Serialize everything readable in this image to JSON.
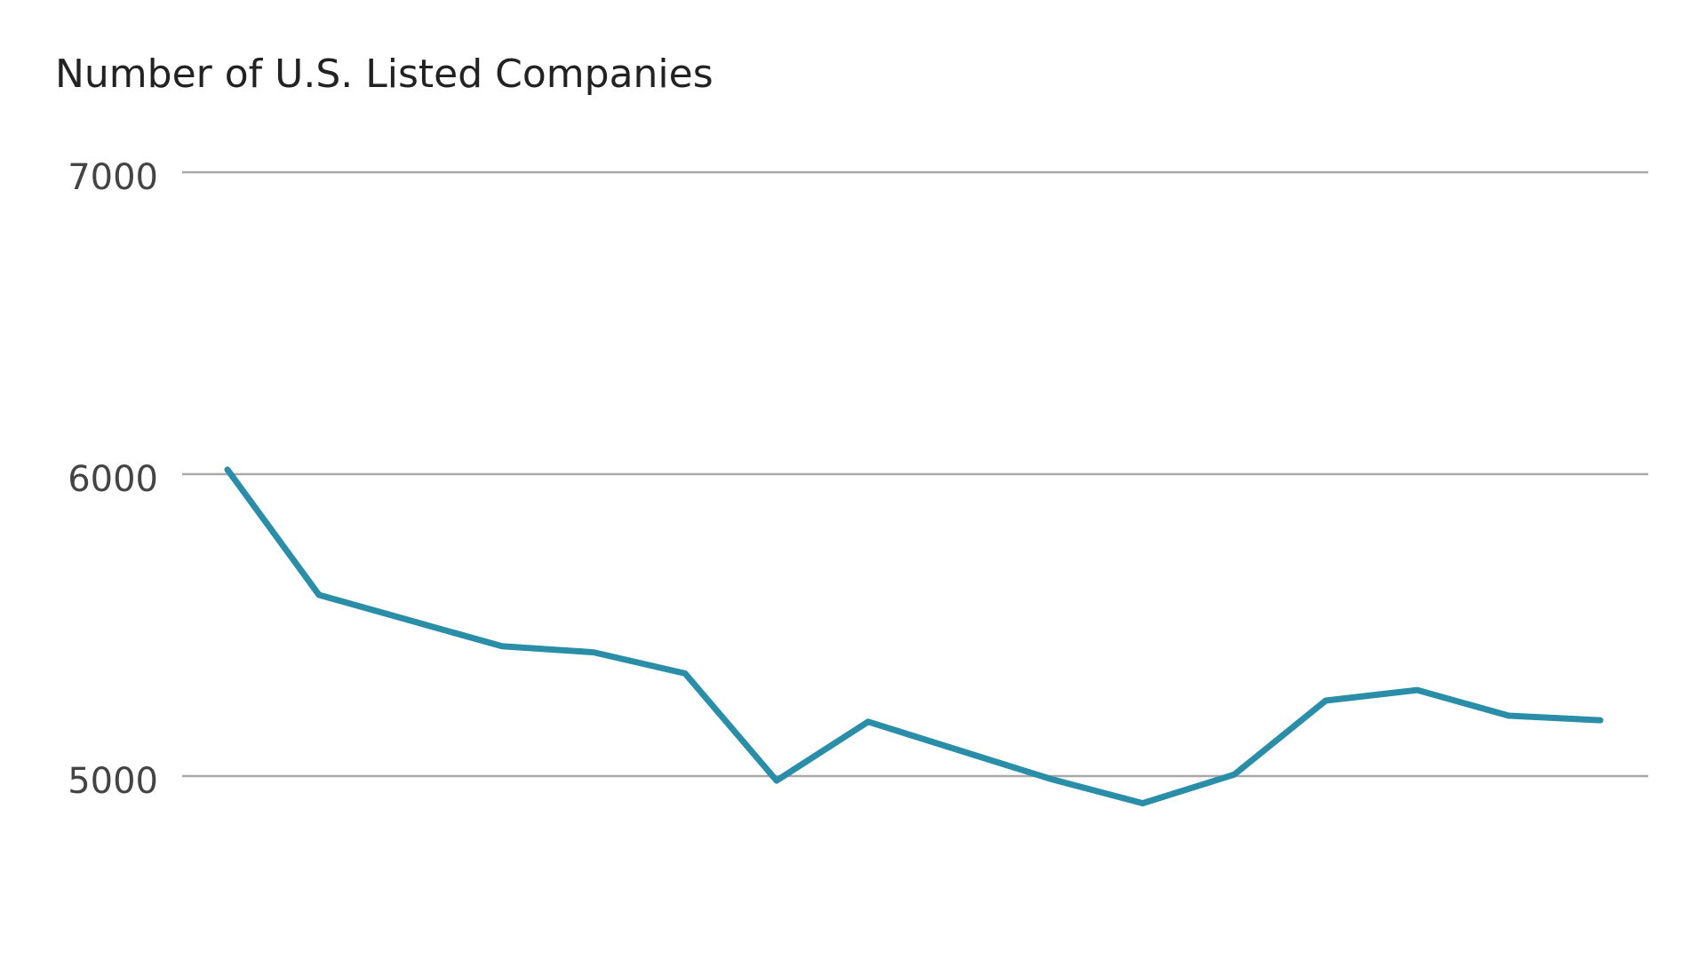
{
  "chart_data": {
    "type": "line",
    "title": "Number of U.S. Listed Companies",
    "categories": [
      null,
      null,
      null,
      null,
      null,
      null,
      null,
      null,
      null,
      null,
      null,
      null,
      null,
      null,
      null,
      null
    ],
    "series": [
      {
        "color": "#2a8ea8",
        "values": [
          6015,
          5600,
          5515,
          5430,
          5410,
          5340,
          4985,
          5180,
          5085,
          4990,
          4910,
          5005,
          5250,
          5285,
          5200,
          5185
        ]
      }
    ],
    "ylim": [
      4500,
      7200
    ],
    "yticks": [
      5000,
      6000,
      7000
    ],
    "grid": true
  }
}
